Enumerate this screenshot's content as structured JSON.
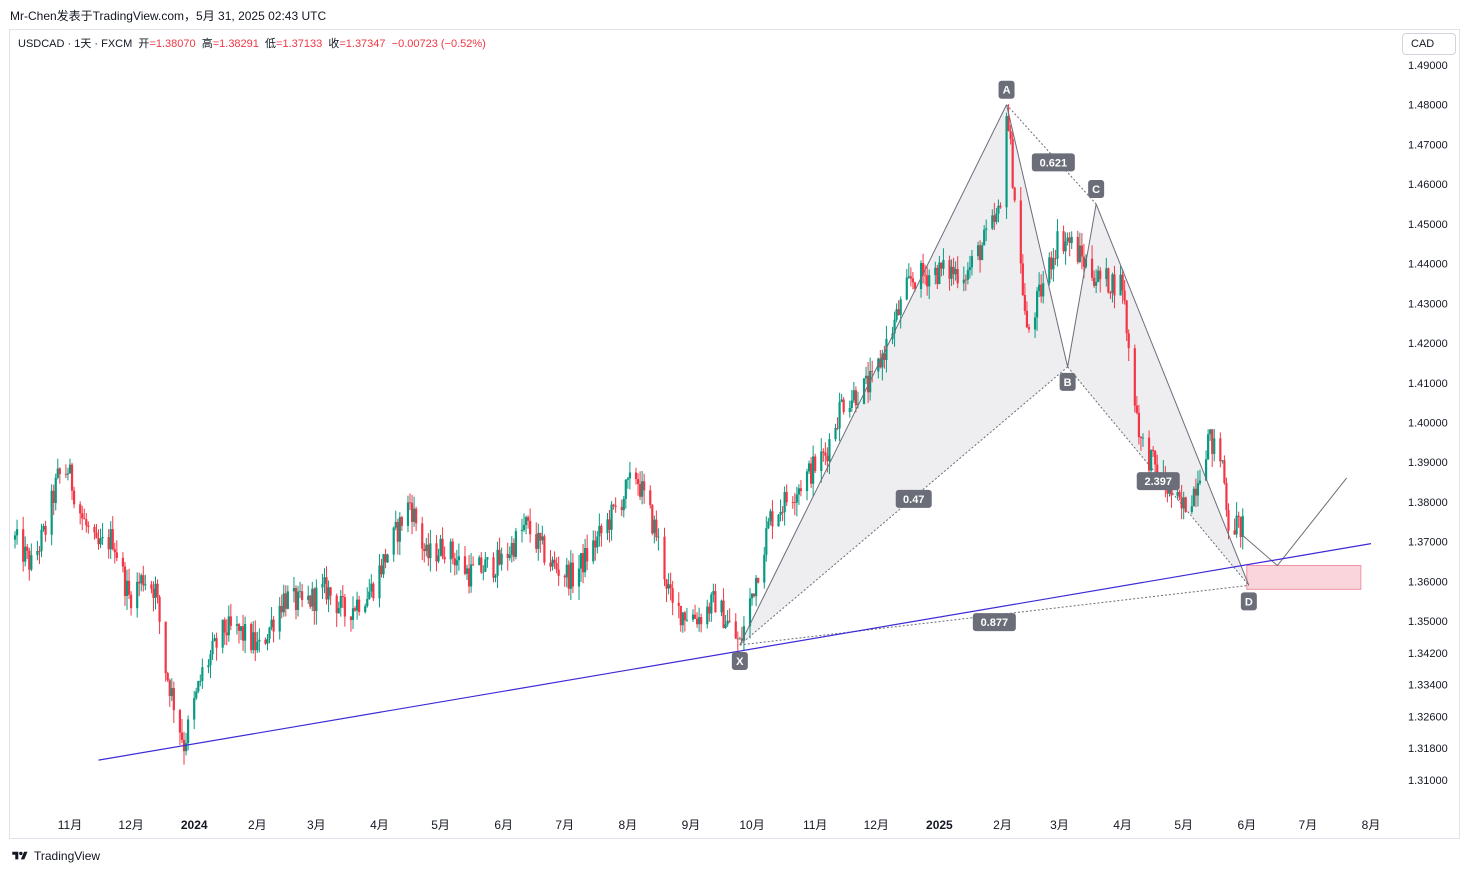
{
  "header": {
    "text": "Mr-Chen发表于TradingView.com，5月 31, 2025 02:43 UTC"
  },
  "legend": {
    "symbol": "USDCAD · 1天 · FXCM",
    "open_label": "开",
    "open": "=1.38070",
    "high_label": "高",
    "high": "=1.38291",
    "low_label": "低",
    "low": "=1.37133",
    "close_label": "收",
    "close": "=1.37347",
    "change": "−0.00723 (−0.52%)"
  },
  "currency": "CAD",
  "footer": {
    "brand": "TradingView",
    "logo_icon": "tradingview-logo-icon"
  },
  "colors": {
    "up": "#089981",
    "down": "#f23645",
    "trendline": "#3d2ad6",
    "pattern_fill": "#e8e8ec",
    "pattern_line": "#6b6e78",
    "label_bg": "#6b6e78",
    "zone_fill": "#f8c4cd",
    "zone_border": "#f291a3"
  },
  "chart_data": {
    "type": "candlestick",
    "symbol": "USDCAD",
    "ylim": [
      1.31,
      1.49
    ],
    "y_ticks": [
      "1.49000",
      "1.48000",
      "1.47000",
      "1.46000",
      "1.45000",
      "1.44000",
      "1.43000",
      "1.42000",
      "1.41000",
      "1.40000",
      "1.39000",
      "1.38000",
      "1.37000",
      "1.36000",
      "1.35000",
      "1.34200",
      "1.33400",
      "1.32600",
      "1.31800",
      "1.31000"
    ],
    "x_ticks": [
      {
        "label": "11月",
        "date": "2023-11-01",
        "bold": false
      },
      {
        "label": "12月",
        "date": "2023-12-01",
        "bold": false
      },
      {
        "label": "2024",
        "date": "2024-01-01",
        "bold": true
      },
      {
        "label": "2月",
        "date": "2024-02-01",
        "bold": false
      },
      {
        "label": "3月",
        "date": "2024-03-01",
        "bold": false
      },
      {
        "label": "4月",
        "date": "2024-04-01",
        "bold": false
      },
      {
        "label": "5月",
        "date": "2024-05-01",
        "bold": false
      },
      {
        "label": "6月",
        "date": "2024-06-01",
        "bold": false
      },
      {
        "label": "7月",
        "date": "2024-07-01",
        "bold": false
      },
      {
        "label": "8月",
        "date": "2024-08-01",
        "bold": false
      },
      {
        "label": "9月",
        "date": "2024-09-01",
        "bold": false
      },
      {
        "label": "10月",
        "date": "2024-10-01",
        "bold": false
      },
      {
        "label": "11月",
        "date": "2024-11-01",
        "bold": false
      },
      {
        "label": "12月",
        "date": "2024-12-01",
        "bold": false
      },
      {
        "label": "2025",
        "date": "2025-01-01",
        "bold": true
      },
      {
        "label": "2月",
        "date": "2025-02-01",
        "bold": false
      },
      {
        "label": "3月",
        "date": "2025-03-01",
        "bold": false
      },
      {
        "label": "4月",
        "date": "2025-04-01",
        "bold": false
      },
      {
        "label": "5月",
        "date": "2025-05-01",
        "bold": false
      },
      {
        "label": "6月",
        "date": "2025-06-01",
        "bold": false
      },
      {
        "label": "7月",
        "date": "2025-07-01",
        "bold": false
      },
      {
        "label": "8月",
        "date": "2025-08-01",
        "bold": false
      }
    ],
    "price_path": [
      [
        "2023-10-05",
        1.3705
      ],
      [
        "2023-10-13",
        1.364
      ],
      [
        "2023-10-20",
        1.373
      ],
      [
        "2023-10-26",
        1.386
      ],
      [
        "2023-10-31",
        1.388
      ],
      [
        "2023-11-07",
        1.376
      ],
      [
        "2023-11-14",
        1.368
      ],
      [
        "2023-11-22",
        1.371
      ],
      [
        "2023-11-30",
        1.356
      ],
      [
        "2023-12-07",
        1.361
      ],
      [
        "2023-12-13",
        1.358
      ],
      [
        "2023-12-18",
        1.338
      ],
      [
        "2023-12-27",
        1.319
      ],
      [
        "2024-01-05",
        1.337
      ],
      [
        "2024-01-16",
        1.348
      ],
      [
        "2024-01-24",
        1.347
      ],
      [
        "2024-02-02",
        1.343
      ],
      [
        "2024-02-14",
        1.356
      ],
      [
        "2024-02-23",
        1.354
      ],
      [
        "2024-03-06",
        1.358
      ],
      [
        "2024-03-15",
        1.352
      ],
      [
        "2024-03-28",
        1.358
      ],
      [
        "2024-04-16",
        1.38
      ],
      [
        "2024-04-24",
        1.366
      ],
      [
        "2024-05-03",
        1.369
      ],
      [
        "2024-05-15",
        1.362
      ],
      [
        "2024-05-31",
        1.365
      ],
      [
        "2024-06-12",
        1.374
      ],
      [
        "2024-06-25",
        1.364
      ],
      [
        "2024-07-05",
        1.361
      ],
      [
        "2024-07-19",
        1.372
      ],
      [
        "2024-08-05",
        1.387
      ],
      [
        "2024-08-15",
        1.372
      ],
      [
        "2024-08-23",
        1.353
      ],
      [
        "2024-09-05",
        1.351
      ],
      [
        "2024-09-13",
        1.355
      ],
      [
        "2024-09-25",
        1.344
      ],
      [
        "2024-10-10",
        1.376
      ],
      [
        "2024-10-22",
        1.383
      ],
      [
        "2024-11-06",
        1.392
      ],
      [
        "2024-11-14",
        1.405
      ],
      [
        "2024-11-29",
        1.41
      ],
      [
        "2024-12-18",
        1.436
      ],
      [
        "2024-12-30",
        1.438
      ],
      [
        "2025-01-15",
        1.438
      ],
      [
        "2025-01-31",
        1.453
      ],
      [
        "2025-02-03",
        1.48
      ],
      [
        "2025-02-13",
        1.422
      ],
      [
        "2025-02-28",
        1.446
      ],
      [
        "2025-03-05",
        1.446
      ],
      [
        "2025-03-20",
        1.436
      ],
      [
        "2025-04-01",
        1.435
      ],
      [
        "2025-04-04",
        1.418
      ],
      [
        "2025-04-10",
        1.395
      ],
      [
        "2025-04-21",
        1.385
      ],
      [
        "2025-04-30",
        1.378
      ],
      [
        "2025-05-06",
        1.383
      ],
      [
        "2025-05-13",
        1.396
      ],
      [
        "2025-05-20",
        1.39
      ],
      [
        "2025-05-23",
        1.375
      ],
      [
        "2025-05-30",
        1.3735
      ]
    ],
    "harmonic_pattern": {
      "points": [
        {
          "label": "X",
          "date": "2024-09-25",
          "price": 1.344
        },
        {
          "label": "A",
          "date": "2025-02-03",
          "price": 1.48
        },
        {
          "label": "B",
          "date": "2025-03-05",
          "price": 1.414
        },
        {
          "label": "C",
          "date": "2025-03-19",
          "price": 1.455
        },
        {
          "label": "D",
          "date": "2025-06-02",
          "price": 1.359
        }
      ],
      "ratios": [
        {
          "value": "0.621",
          "from": "X",
          "via": "A",
          "to": "B"
        },
        {
          "value": "0.47",
          "from": "X",
          "to": "B"
        },
        {
          "value": "2.397",
          "from": "B",
          "to": "D"
        },
        {
          "value": "0.877",
          "from": "X",
          "to": "D"
        }
      ],
      "projection": [
        {
          "date": "2025-05-29",
          "price": 1.372
        },
        {
          "date": "2025-06-16",
          "price": 1.364
        },
        {
          "date": "2025-07-20",
          "price": 1.386
        }
      ],
      "reversal_zone": {
        "date_from": "2025-06-01",
        "date_to": "2025-07-27",
        "price_low": 1.358,
        "price_high": 1.364
      }
    },
    "trendline": [
      {
        "date": "2023-11-15",
        "price": 1.315
      },
      {
        "date": "2025-08-01",
        "price": 1.3695
      }
    ]
  }
}
